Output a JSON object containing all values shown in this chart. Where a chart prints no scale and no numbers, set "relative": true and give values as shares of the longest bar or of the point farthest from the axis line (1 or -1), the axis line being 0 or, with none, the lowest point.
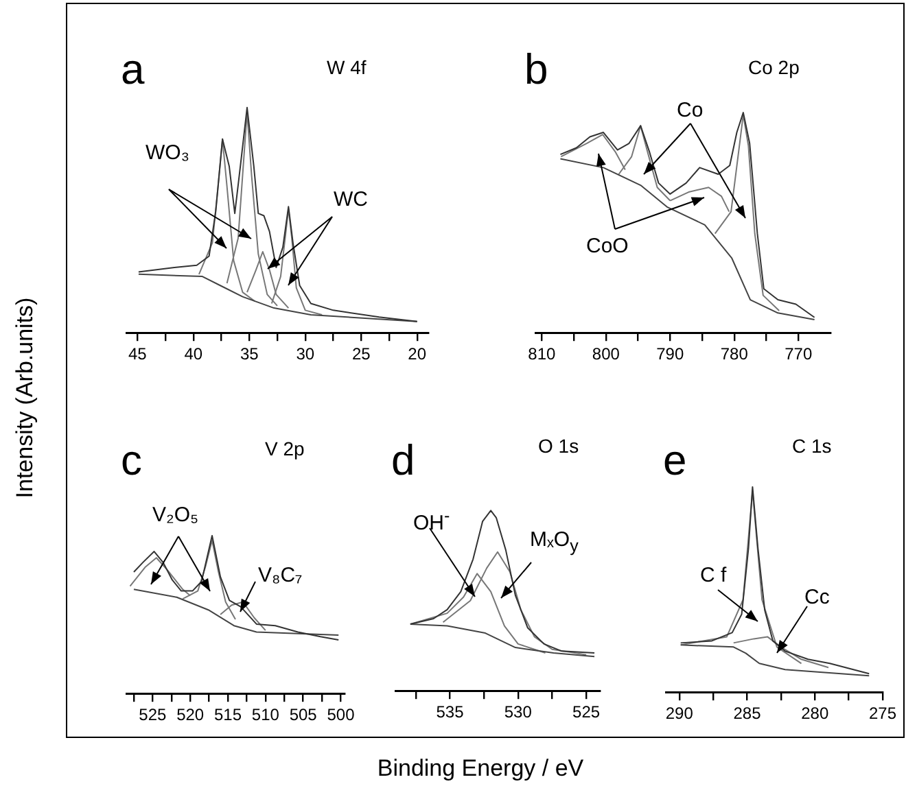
{
  "chart_data": [
    {
      "type": "line",
      "title": "a",
      "subtitle": "W 4f",
      "ylabel": "Intensity (Arb.units)",
      "relative": true,
      "xlim": [
        46,
        19
      ],
      "xticks": [
        45,
        {
          "value": 42.5,
          "label": null
        },
        40,
        {
          "value": 37.5,
          "label": null
        },
        35,
        {
          "value": 32.5,
          "label": null
        },
        30,
        {
          "value": 27.5,
          "label": null
        },
        25,
        {
          "value": 22.5,
          "label": null
        },
        20
      ],
      "annotations": [
        "WO₃",
        "WC"
      ],
      "series": [
        {
          "color": "#333333",
          "x": [
            44.9,
            41.7,
            39.7,
            38.6,
            38.0,
            37.4,
            36.8,
            36.3,
            35.8,
            35.2,
            34.6,
            34.2,
            33.7,
            33.2,
            32.6,
            32.0,
            31.5,
            31.1,
            30.5,
            29.5,
            27.5,
            23.4,
            20.0
          ],
          "values": [
            0.27,
            0.29,
            0.3,
            0.34,
            0.54,
            0.86,
            0.74,
            0.53,
            0.74,
            1,
            0.74,
            0.53,
            0.52,
            0.45,
            0.29,
            0.38,
            0.56,
            0.4,
            0.21,
            0.13,
            0.1,
            0.07,
            0.05
          ]
        },
        {
          "color": "#444444",
          "x": [
            44.9,
            39.2,
            37.6,
            35.6,
            32.8,
            29.5,
            20.0
          ],
          "values": [
            0.26,
            0.25,
            0.21,
            0.16,
            0.11,
            0.08,
            0.05
          ]
        },
        {
          "color": "#777777",
          "x": [
            39.5,
            38.3,
            37.8,
            37.4,
            37.0,
            36.4,
            35.6,
            34.5
          ],
          "values": [
            0.26,
            0.4,
            0.65,
            0.86,
            0.65,
            0.32,
            0.18,
            0.14
          ]
        },
        {
          "color": "#777777",
          "x": [
            37.0,
            36.0,
            35.6,
            35.2,
            34.8,
            34.2,
            33.4,
            32.5
          ],
          "values": [
            0.22,
            0.42,
            0.7,
            0.98,
            0.7,
            0.35,
            0.17,
            0.12
          ]
        },
        {
          "color": "#777777",
          "x": [
            35.2,
            34.4,
            33.8,
            33.2,
            32.6,
            31.5
          ],
          "values": [
            0.18,
            0.28,
            0.36,
            0.28,
            0.17,
            0.11
          ]
        },
        {
          "color": "#777777",
          "x": [
            33.0,
            32.2,
            31.8,
            31.5,
            31.2,
            30.8,
            30.0,
            28.5
          ],
          "values": [
            0.13,
            0.25,
            0.42,
            0.55,
            0.42,
            0.2,
            0.1,
            0.08
          ]
        }
      ]
    },
    {
      "type": "line",
      "title": "b",
      "subtitle": "Co 2p",
      "relative": true,
      "xlim": [
        811,
        765
      ],
      "xticks": [
        810,
        {
          "value": 805,
          "label": null
        },
        800,
        {
          "value": 795,
          "label": null
        },
        790,
        {
          "value": 785,
          "label": null
        },
        780,
        {
          "value": 775,
          "label": null
        },
        770
      ],
      "annotations": [
        "Co",
        "CoO"
      ],
      "series": [
        {
          "color": "#333333",
          "x": [
            807.1,
            804.6,
            802.5,
            800.4,
            798.2,
            796.4,
            794.6,
            793.2,
            791.8,
            790.0,
            787.5,
            785.4,
            782.5,
            780.7,
            779.6,
            778.6,
            777.6,
            776.4,
            775.4,
            773.2,
            770.4,
            767.5
          ],
          "values": [
            0.81,
            0.84,
            0.89,
            0.91,
            0.83,
            0.86,
            0.94,
            0.82,
            0.68,
            0.63,
            0.68,
            0.75,
            0.72,
            0.76,
            0.91,
            1,
            0.86,
            0.45,
            0.2,
            0.15,
            0.13,
            0.07
          ]
        },
        {
          "color": "#444444",
          "x": [
            807.1,
            800.4,
            794.6,
            790.4,
            784.6,
            780.4,
            777.5,
            773.2,
            767.5
          ],
          "values": [
            0.79,
            0.75,
            0.67,
            0.57,
            0.49,
            0.34,
            0.15,
            0.09,
            0.06
          ]
        },
        {
          "color": "#777777",
          "x": [
            783,
            780.5,
            779.2,
            778.6,
            777.8,
            776.8,
            775.5,
            773
          ],
          "values": [
            0.45,
            0.55,
            0.85,
            0.99,
            0.85,
            0.45,
            0.17,
            0.1
          ]
        },
        {
          "color": "#777777",
          "x": [
            790,
            787,
            784,
            782,
            780.8
          ],
          "values": [
            0.6,
            0.64,
            0.66,
            0.62,
            0.55
          ]
        },
        {
          "color": "#777777",
          "x": [
            798,
            796,
            794.6,
            793.5,
            792,
            790
          ],
          "values": [
            0.72,
            0.8,
            0.94,
            0.82,
            0.66,
            0.6
          ]
        },
        {
          "color": "#777777",
          "x": [
            807,
            803,
            800.5,
            798.5,
            797
          ],
          "values": [
            0.8,
            0.86,
            0.9,
            0.82,
            0.74
          ]
        }
      ]
    },
    {
      "type": "line",
      "title": "c",
      "subtitle": "V 2p",
      "relative": true,
      "xlim": [
        528.5,
        499.5
      ],
      "xticks": [
        {
          "value": 527.5,
          "label": null
        },
        525,
        {
          "value": 522.5,
          "label": null
        },
        520,
        {
          "value": 517.5,
          "label": null
        },
        515,
        {
          "value": 512.5,
          "label": null
        },
        510,
        {
          "value": 507.5,
          "label": null
        },
        505,
        {
          "value": 502.5,
          "label": null
        },
        500
      ],
      "annotations": [
        "V₂O₅",
        "V₈C₇"
      ],
      "series": [
        {
          "color": "#333333",
          "x": [
            527.5,
            526.3,
            524.8,
            523.6,
            522.4,
            521.2,
            519.7,
            518.5,
            517.1,
            516.0,
            514.8,
            513.3,
            511.2,
            508.7,
            505.7,
            502.7,
            500.3
          ],
          "values": [
            0.77,
            0.83,
            0.9,
            0.83,
            0.72,
            0.65,
            0.65,
            0.71,
            1,
            0.74,
            0.59,
            0.55,
            0.44,
            0.43,
            0.39,
            0.36,
            0.34
          ]
        },
        {
          "color": "#444444",
          "x": [
            527.5,
            521.8,
            517.6,
            514.2,
            511.2,
            500.3
          ],
          "values": [
            0.66,
            0.61,
            0.53,
            0.43,
            0.39,
            0.37
          ]
        },
        {
          "color": "#777777",
          "x": [
            521,
            519,
            518,
            517.1,
            516.3,
            515.3,
            514
          ],
          "values": [
            0.6,
            0.65,
            0.8,
            0.97,
            0.78,
            0.58,
            0.47
          ]
        },
        {
          "color": "#777777",
          "x": [
            528,
            526,
            524.5,
            523,
            521,
            520
          ],
          "values": [
            0.68,
            0.8,
            0.86,
            0.78,
            0.66,
            0.62
          ]
        },
        {
          "color": "#777777",
          "x": [
            516,
            514.5,
            513,
            511.5,
            510
          ],
          "values": [
            0.5,
            0.56,
            0.58,
            0.48,
            0.4
          ]
        }
      ]
    },
    {
      "type": "line",
      "title": "d",
      "subtitle": "O 1s",
      "xlabel": "Binding Energy / eV",
      "relative": true,
      "xlim": [
        539,
        524
      ],
      "xticks": [
        {
          "value": 537.5,
          "label": null
        },
        535,
        {
          "value": 532.5,
          "label": null
        },
        530,
        {
          "value": 527.5,
          "label": null
        },
        525
      ],
      "annotations": [
        "OH$^{-}$",
        "MₓO$_{y}$"
      ],
      "series": [
        {
          "color": "#333333",
          "x": [
            537.9,
            536.2,
            535.2,
            534.2,
            533.3,
            532.6,
            532.0,
            531.6,
            530.9,
            530.2,
            529.3,
            528.1,
            526.8,
            524.4
          ],
          "values": [
            0.37,
            0.4,
            0.45,
            0.55,
            0.73,
            0.94,
            1,
            0.96,
            0.78,
            0.53,
            0.35,
            0.26,
            0.22,
            0.21
          ]
        },
        {
          "color": "#444444",
          "x": [
            537.9,
            535.2,
            532.4,
            530.2,
            527.4,
            524.4
          ],
          "values": [
            0.37,
            0.36,
            0.32,
            0.24,
            0.21,
            0.19
          ]
        },
        {
          "color": "#777777",
          "x": [
            537.9,
            535.2,
            534,
            533,
            532,
            531,
            530,
            528
          ],
          "values": [
            0.37,
            0.43,
            0.52,
            0.65,
            0.55,
            0.36,
            0.26,
            0.21
          ]
        },
        {
          "color": "#777777",
          "x": [
            535.5,
            533.5,
            532.3,
            531.5,
            530.6,
            529.8,
            528.8,
            527.5,
            525
          ],
          "values": [
            0.38,
            0.5,
            0.68,
            0.77,
            0.66,
            0.45,
            0.3,
            0.23,
            0.2
          ]
        }
      ]
    },
    {
      "type": "line",
      "title": "e",
      "subtitle": "C 1s",
      "relative": true,
      "xlim": [
        291,
        275
      ],
      "xticks": [
        290,
        {
          "value": 287.5,
          "label": null
        },
        285,
        {
          "value": 282.5,
          "label": null
        },
        280,
        {
          "value": 277.5,
          "label": null
        },
        275
      ],
      "annotations": [
        "C f",
        "Cc"
      ],
      "series": [
        {
          "color": "#333333",
          "x": [
            289.9,
            287.6,
            286.1,
            285.4,
            284.9,
            284.6,
            284.2,
            283.7,
            283.1,
            282.2,
            280.5,
            278.9,
            276.0
          ],
          "values": [
            0.24,
            0.25,
            0.29,
            0.38,
            0.7,
            1,
            0.7,
            0.4,
            0.25,
            0.2,
            0.16,
            0.14,
            0.09
          ]
        },
        {
          "color": "#444444",
          "x": [
            289.9,
            286,
            285.1,
            284.1,
            282.2,
            276.0
          ],
          "values": [
            0.23,
            0.22,
            0.19,
            0.14,
            0.11,
            0.08
          ]
        },
        {
          "color": "#777777",
          "x": [
            289.9,
            286.5,
            285.3,
            284.6,
            283.9,
            282.8,
            281
          ],
          "values": [
            0.23,
            0.27,
            0.45,
            0.98,
            0.45,
            0.22,
            0.14
          ]
        },
        {
          "color": "#777777",
          "x": [
            286,
            284.5,
            283.5,
            282.5,
            281,
            279
          ],
          "values": [
            0.24,
            0.26,
            0.27,
            0.22,
            0.16,
            0.12
          ]
        }
      ]
    }
  ]
}
